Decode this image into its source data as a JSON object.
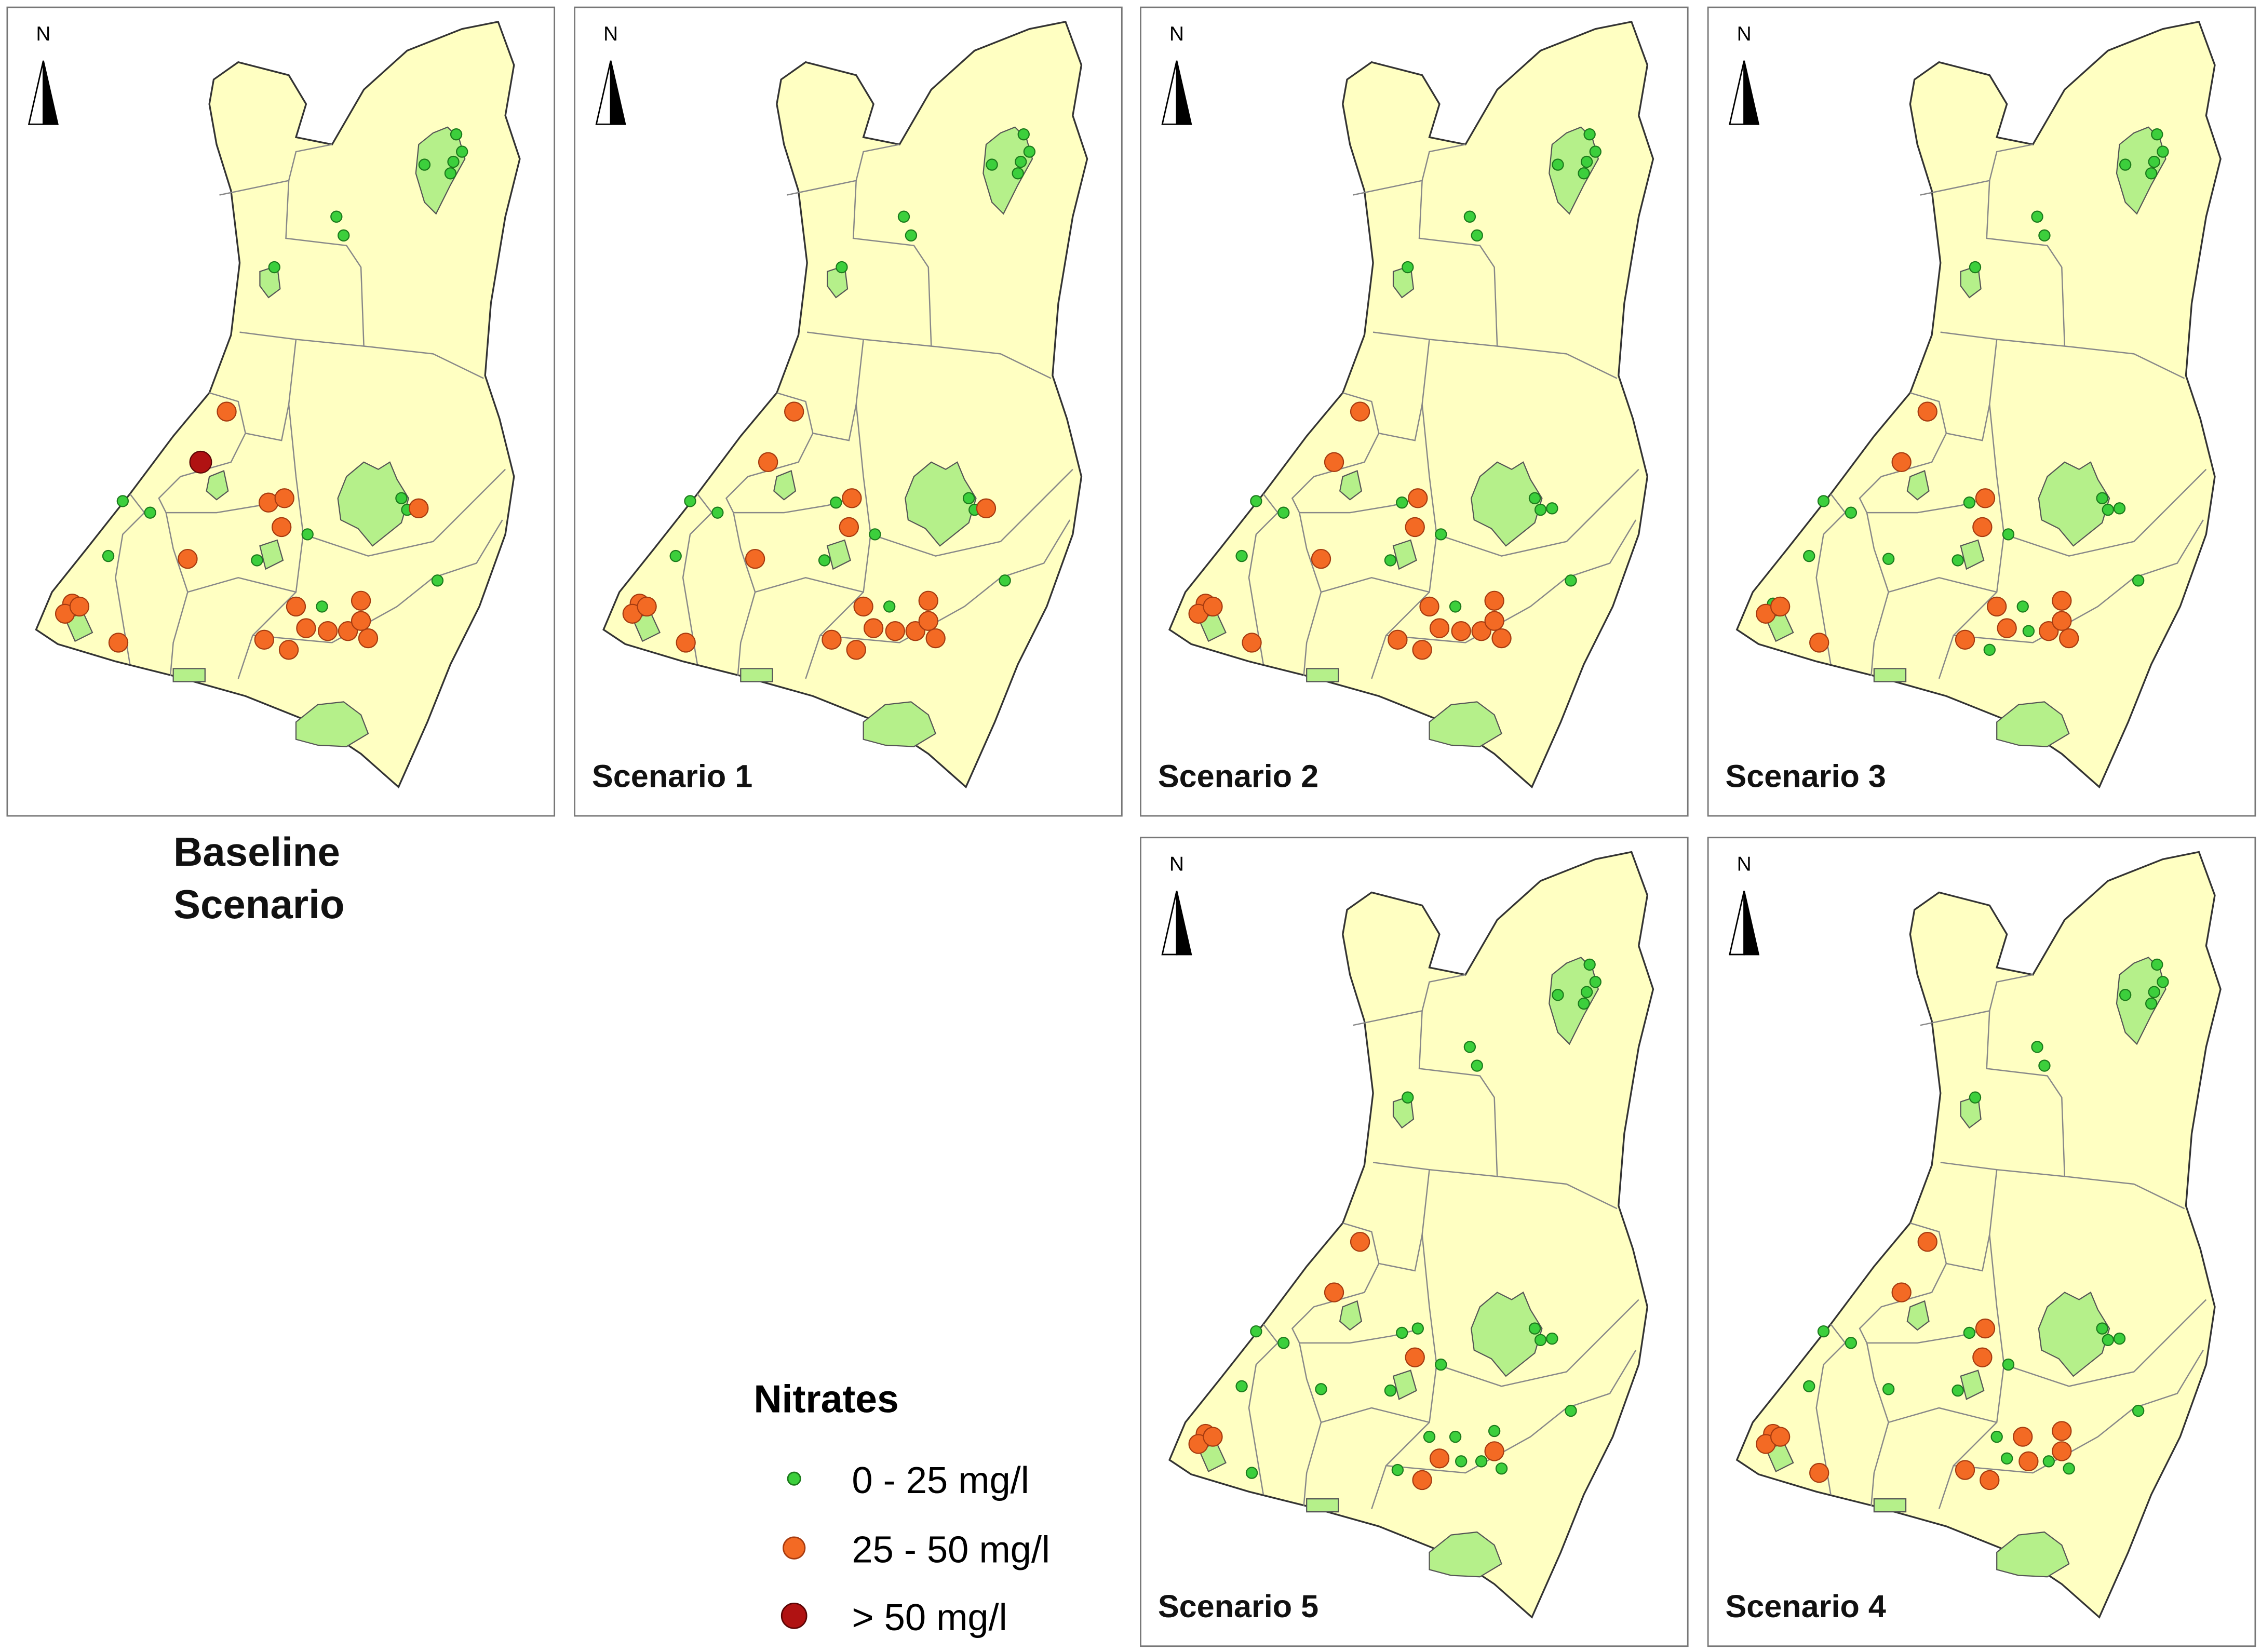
{
  "panels": [
    {
      "north": "N",
      "label": "Baseline Scenario"
    },
    {
      "north": "N",
      "label": "Scenario 1"
    },
    {
      "north": "N",
      "label": "Scenario 2"
    },
    {
      "north": "N",
      "label": "Scenario 3"
    },
    {
      "north": "N",
      "label": "Scenario 5"
    },
    {
      "north": "N",
      "label": "Scenario 4"
    }
  ],
  "legend": {
    "title": "Nitrates",
    "items": [
      "0 - 25 mg/l",
      "25 - 50 mg/l",
      "> 50 mg/l"
    ]
  }
}
